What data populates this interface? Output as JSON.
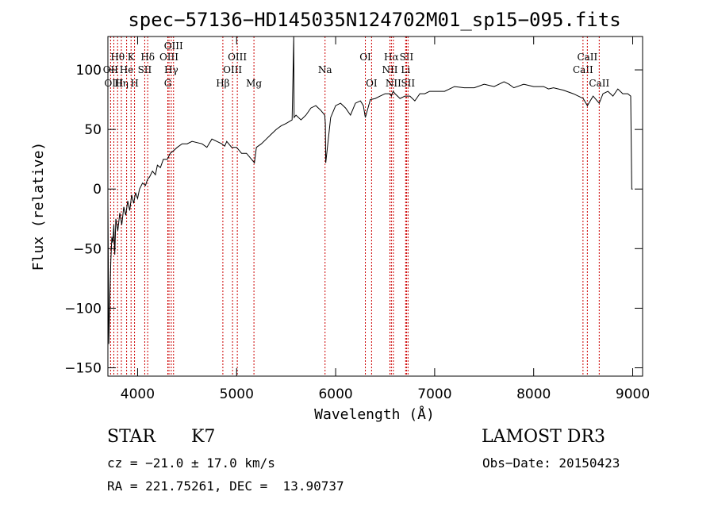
{
  "chart_data": {
    "type": "line",
    "title": "spec−57136−HD145035N124702M01_sp15−095.fits",
    "xlabel": "Wavelength (Å)",
    "ylabel": "Flux (relative)",
    "xlim": [
      3700,
      9100
    ],
    "ylim": [
      -157,
      128
    ],
    "xticks": [
      4000,
      5000,
      6000,
      7000,
      8000,
      9000
    ],
    "yticks": [
      -150,
      -100,
      -50,
      0,
      50,
      100
    ],
    "ytick_labels": [
      "−150",
      "−100",
      "−50",
      "0",
      "50",
      "100"
    ],
    "series": [
      {
        "x": [
          3700,
          3710,
          3720,
          3730,
          3740,
          3750,
          3760,
          3770,
          3780,
          3800,
          3820,
          3840,
          3860,
          3880,
          3900,
          3920,
          3940,
          3960,
          3980,
          4000,
          4020,
          4050,
          4080,
          4100,
          4120,
          4150,
          4180,
          4200,
          4230,
          4260,
          4300,
          4330,
          4360,
          4400,
          4450,
          4500,
          4550,
          4600,
          4650,
          4700,
          4750,
          4800,
          4850,
          4880,
          4900,
          4950,
          5000,
          5050,
          5100,
          5150,
          5180,
          5200,
          5250,
          5300,
          5350,
          5400,
          5450,
          5500,
          5540,
          5560,
          5577,
          5580,
          5600,
          5650,
          5700,
          5750,
          5800,
          5850,
          5890,
          5896,
          5900,
          5950,
          6000,
          6050,
          6100,
          6150,
          6200,
          6250,
          6280,
          6300,
          6350,
          6400,
          6450,
          6500,
          6550,
          6563,
          6580,
          6600,
          6650,
          6700,
          6750,
          6800,
          6850,
          6900,
          6950,
          7000,
          7100,
          7200,
          7300,
          7400,
          7500,
          7600,
          7700,
          7750,
          7800,
          7900,
          8000,
          8100,
          8150,
          8200,
          8300,
          8400,
          8450,
          8500,
          8542,
          8600,
          8662,
          8700,
          8750,
          8800,
          8850,
          8900,
          8950,
          8980,
          8990,
          9000
        ],
        "y": [
          -10,
          -130,
          -90,
          -60,
          -40,
          -45,
          -30,
          -55,
          -25,
          -35,
          -20,
          -30,
          -15,
          -22,
          -10,
          -18,
          -5,
          -12,
          -3,
          -8,
          0,
          5,
          3,
          8,
          10,
          15,
          12,
          20,
          18,
          25,
          25,
          30,
          32,
          35,
          38,
          38,
          40,
          39,
          38,
          35,
          42,
          40,
          38,
          36,
          40,
          35,
          35,
          30,
          30,
          25,
          22,
          35,
          38,
          42,
          46,
          50,
          53,
          55,
          57,
          58,
          128,
          60,
          62,
          58,
          62,
          68,
          70,
          66,
          62,
          55,
          22,
          60,
          70,
          72,
          68,
          62,
          72,
          74,
          70,
          60,
          75,
          76,
          78,
          80,
          80,
          78,
          82,
          80,
          76,
          78,
          78,
          74,
          80,
          80,
          82,
          82,
          82,
          86,
          85,
          85,
          88,
          86,
          90,
          88,
          85,
          88,
          86,
          86,
          84,
          85,
          83,
          80,
          78,
          76,
          70,
          78,
          72,
          80,
          82,
          78,
          84,
          80,
          80,
          78,
          0,
          0
        ]
      }
    ],
    "line_markers": [
      {
        "label": "Hθ",
        "x": 3798,
        "row": 1
      },
      {
        "label": "OII",
        "x": 3727,
        "row": 2
      },
      {
        "label": "OIII",
        "x": 3760,
        "row": 3
      },
      {
        "label": "Hη",
        "x": 3836,
        "row": 3
      },
      {
        "label": "He",
        "x": 3889,
        "row": 2
      },
      {
        "label": "K",
        "x": 3934,
        "row": 1
      },
      {
        "label": "H",
        "x": 3969,
        "row": 3
      },
      {
        "label": "SII",
        "x": 4072,
        "row": 2
      },
      {
        "label": "Hδ",
        "x": 4102,
        "row": 1
      },
      {
        "label": "OIII",
        "x": 4317,
        "row": 1
      },
      {
        "label": "Hγ",
        "x": 4340,
        "row": 2
      },
      {
        "label": "G",
        "x": 4305,
        "row": 3
      },
      {
        "label": "OIII",
        "x": 4363,
        "row": 0
      },
      {
        "label": "Hβ",
        "x": 4861,
        "row": 3
      },
      {
        "label": "OIII",
        "x": 4959,
        "row": 2
      },
      {
        "label": "OIII",
        "x": 5007,
        "row": 1
      },
      {
        "label": "Mg",
        "x": 5175,
        "row": 3
      },
      {
        "label": "Na",
        "x": 5893,
        "row": 2
      },
      {
        "label": "OI",
        "x": 6300,
        "row": 1
      },
      {
        "label": "OI",
        "x": 6363,
        "row": 3
      },
      {
        "label": "Hα",
        "x": 6563,
        "row": 1
      },
      {
        "label": "NII",
        "x": 6548,
        "row": 2
      },
      {
        "label": "NII",
        "x": 6583,
        "row": 3
      },
      {
        "label": "SII",
        "x": 6716,
        "row": 1
      },
      {
        "label": "Li",
        "x": 6707,
        "row": 2
      },
      {
        "label": "SII",
        "x": 6731,
        "row": 3
      },
      {
        "label": "CaII",
        "x": 8498,
        "row": 2
      },
      {
        "label": "CaII",
        "x": 8542,
        "row": 1
      },
      {
        "label": "CaII",
        "x": 8662,
        "row": 3
      }
    ]
  },
  "info": {
    "object_class": "STAR",
    "subclass": "K7",
    "survey": "LAMOST DR3",
    "redshift": "cz = −21.0 ± 17.0 km/s",
    "obs_date": "Obs−Date: 20150423",
    "coords": "RA = 221.75261, DEC =  13.90737"
  },
  "colors": {
    "line_marker": "#cc0000",
    "spectrum": "#000000"
  }
}
